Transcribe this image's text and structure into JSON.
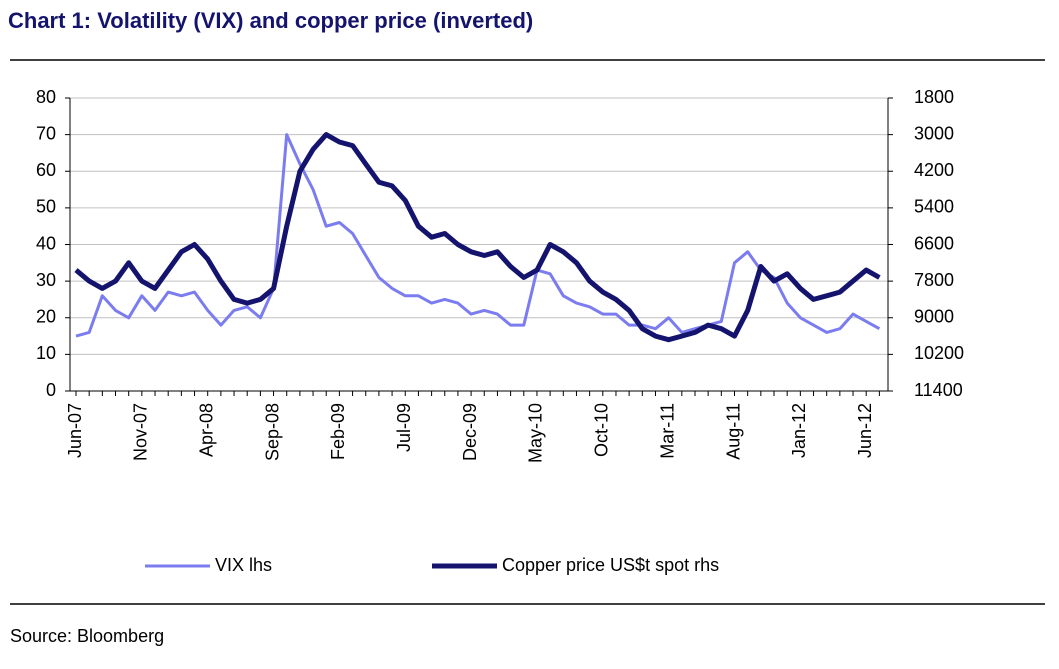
{
  "chart_data": {
    "type": "line",
    "title": "Chart 1: Volatility (VIX) and copper price (inverted)",
    "source": "Source: Bloomberg",
    "categories": [
      "Jun-07",
      null,
      null,
      null,
      null,
      "Nov-07",
      null,
      null,
      null,
      null,
      "Apr-08",
      null,
      null,
      null,
      null,
      "Sep-08",
      null,
      null,
      null,
      null,
      "Feb-09",
      null,
      null,
      null,
      null,
      "Jul-09",
      null,
      null,
      null,
      null,
      "Dec-09",
      null,
      null,
      null,
      null,
      "May-10",
      null,
      null,
      null,
      null,
      "Oct-10",
      null,
      null,
      null,
      null,
      "Mar-11",
      null,
      null,
      null,
      null,
      "Aug-11",
      null,
      null,
      null,
      null,
      "Jan-12",
      null,
      null,
      null,
      null,
      "Jun-12",
      null
    ],
    "series": [
      {
        "name": "VIX lhs",
        "color": "#7b7cf0",
        "width": 3,
        "values": [
          15,
          16,
          26,
          22,
          20,
          26,
          22,
          27,
          26,
          27,
          22,
          18,
          22,
          23,
          20,
          28,
          70,
          62,
          55,
          45,
          46,
          43,
          37,
          31,
          28,
          26,
          26,
          24,
          25,
          24,
          21,
          22,
          21,
          18,
          18,
          33,
          32,
          26,
          24,
          23,
          21,
          21,
          18,
          18,
          17,
          20,
          16,
          17,
          18,
          19,
          35,
          38,
          33,
          31,
          24,
          20,
          18,
          16,
          17,
          21,
          19,
          17
        ]
      },
      {
        "name": "Copper price US$t spot rhs",
        "color": "#14146e",
        "width": 5,
        "axis": "y2",
        "values": [
          7440,
          7800,
          8040,
          7800,
          7200,
          7800,
          8040,
          7440,
          6840,
          6600,
          7080,
          7800,
          8400,
          8520,
          8400,
          8040,
          6000,
          4200,
          3480,
          3000,
          3240,
          3360,
          3960,
          4560,
          4680,
          5160,
          6000,
          6360,
          6240,
          6600,
          6840,
          6960,
          6840,
          7320,
          7680,
          7440,
          6600,
          6840,
          7200,
          7800,
          8160,
          8400,
          8760,
          9360,
          9600,
          9720,
          9600,
          9480,
          9240,
          9360,
          9600,
          8760,
          7320,
          7800,
          7560,
          8040,
          8400,
          8280,
          8160,
          7800,
          7440,
          7680
        ]
      }
    ],
    "ylim": [
      0,
      80
    ],
    "yticks": [
      0,
      10,
      20,
      30,
      40,
      50,
      60,
      70,
      80
    ],
    "y2lim": [
      11400,
      1800
    ],
    "y2ticks": [
      1800,
      3000,
      4200,
      5400,
      6600,
      7800,
      9000,
      10200,
      11400
    ],
    "grid": true
  }
}
